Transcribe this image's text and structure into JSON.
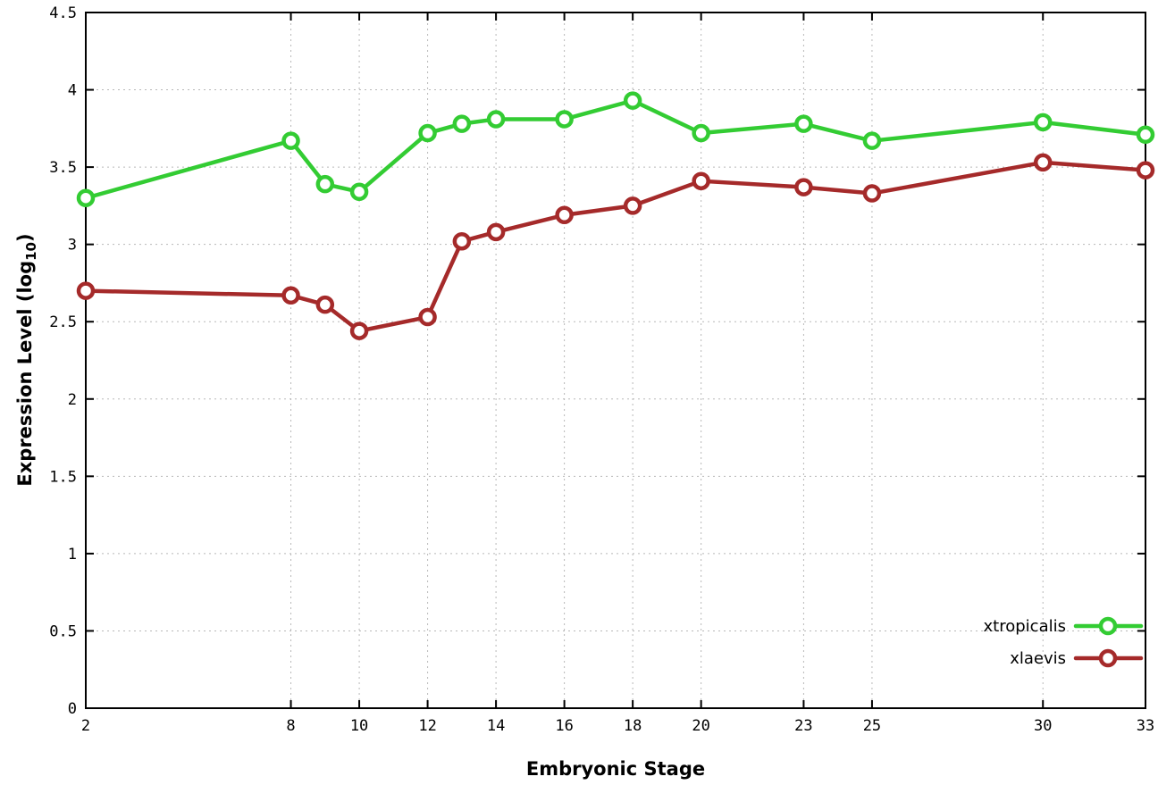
{
  "chart_data": {
    "type": "line",
    "title": "",
    "xlabel": "Embryonic Stage",
    "ylabel": "Expression Level (log10)",
    "ylabel_parts": {
      "main": "Expression Level (log",
      "sub": "10",
      "end": ")"
    },
    "x": [
      2,
      8,
      9,
      10,
      12,
      13,
      14,
      16,
      18,
      20,
      23,
      25,
      30,
      33
    ],
    "series": [
      {
        "name": "xtropicalis",
        "color": "#33cc33",
        "values": [
          3.3,
          3.67,
          3.39,
          3.34,
          3.72,
          3.78,
          3.81,
          3.81,
          3.93,
          3.72,
          3.78,
          3.67,
          3.79,
          3.71
        ]
      },
      {
        "name": "xlaevis",
        "color": "#a52a2a",
        "values": [
          2.7,
          2.67,
          2.61,
          2.44,
          2.53,
          3.02,
          3.08,
          3.19,
          3.25,
          3.41,
          3.37,
          3.33,
          3.53,
          3.48
        ]
      }
    ],
    "x_ticks": [
      2,
      8,
      10,
      12,
      14,
      16,
      18,
      20,
      23,
      25,
      30,
      33
    ],
    "y_ticks": [
      0,
      0.5,
      1,
      1.5,
      2,
      2.5,
      3,
      3.5,
      4,
      4.5
    ],
    "xlim": [
      2,
      33
    ],
    "ylim": [
      0,
      4.5
    ],
    "grid": true,
    "legend_position": "bottom-right",
    "colors": {
      "border": "#000000",
      "grid": "#b8b8b8",
      "tick_text": "#000000",
      "background": "#ffffff"
    }
  }
}
